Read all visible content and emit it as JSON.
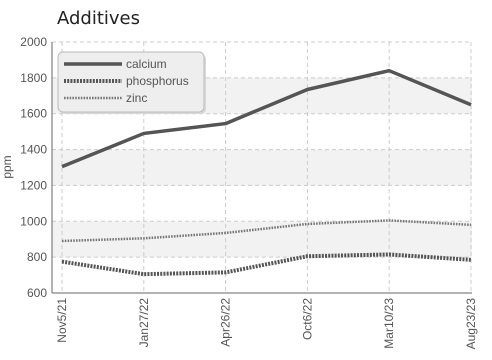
{
  "chart_data": {
    "type": "line",
    "title": "Additives",
    "xlabel": "",
    "ylabel": "ppm",
    "ylim": [
      600,
      2000
    ],
    "yticks": [
      600,
      800,
      1000,
      1200,
      1400,
      1600,
      1800,
      2000
    ],
    "categories": [
      "Nov5/21",
      "Jan27/22",
      "Apr26/22",
      "Oct6/22",
      "Mar10/23",
      "Aug23/23"
    ],
    "grid": true,
    "legend": "top-left",
    "series": [
      {
        "name": "calcium",
        "values": [
          1305,
          1490,
          1545,
          1735,
          1840,
          1650
        ],
        "color": "#555555",
        "style": "solid"
      },
      {
        "name": "phosphorus",
        "values": [
          775,
          705,
          715,
          805,
          815,
          785
        ],
        "color": "#555555",
        "style": "dotted-thick"
      },
      {
        "name": "zinc",
        "values": [
          890,
          905,
          935,
          985,
          1005,
          980
        ],
        "color": "#777777",
        "style": "dotted-thin"
      }
    ]
  }
}
